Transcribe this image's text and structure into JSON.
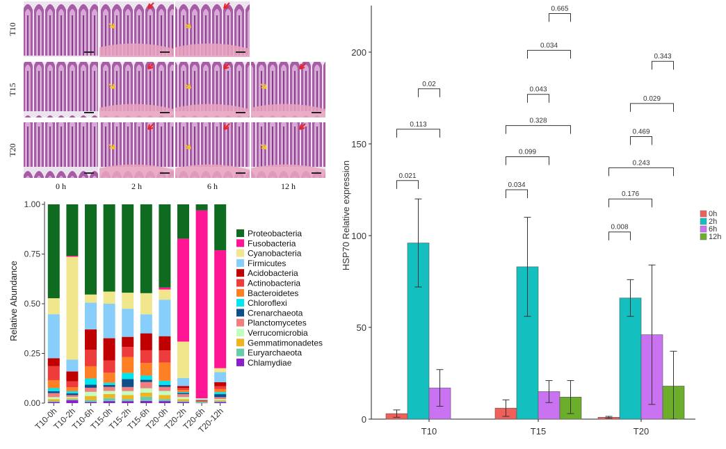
{
  "histology": {
    "rows": [
      "T10",
      "T15",
      "T20"
    ],
    "columns": [
      "0 h",
      "2 h",
      "6 h",
      "12 h"
    ],
    "present": [
      [
        true,
        true,
        true,
        false
      ],
      [
        true,
        true,
        true,
        true
      ],
      [
        true,
        true,
        true,
        true
      ]
    ],
    "colors": {
      "tissue": "#a85ca6",
      "lumen": "#ece4ef",
      "submucosa": "#e9a3bf",
      "arrow_red": "#e8242a",
      "arrow_yellow": "#f0c22a"
    }
  },
  "chart_data": [
    {
      "type": "stacked-bar",
      "ylabel": "Relative Abundance",
      "ylim": [
        0,
        1
      ],
      "yticks": [
        "0.00",
        "0.25",
        "0.50",
        "0.75",
        "1.00"
      ],
      "categories": [
        "T10-0h",
        "T10-2h",
        "T10-6h",
        "T15-0h",
        "T15-2h",
        "T15-6h",
        "T20-0h",
        "T20-2h",
        "T20-6h",
        "T20-12h"
      ],
      "legend_position": "right",
      "series": [
        {
          "name": "Proteobacteria",
          "color": "#0e6b1f",
          "values": [
            0.47,
            0.26,
            0.44,
            0.43,
            0.44,
            0.42,
            0.41,
            0.17,
            0.03,
            0.23
          ]
        },
        {
          "name": "Fusobacteria",
          "color": "#ff1493",
          "values": [
            0.0,
            0.005,
            0.0,
            0.0,
            0.0,
            0.0,
            0.01,
            0.51,
            0.93,
            0.59
          ]
        },
        {
          "name": "Cyanobacteria",
          "color": "#f0e68c",
          "values": [
            0.08,
            0.52,
            0.04,
            0.06,
            0.08,
            0.1,
            0.05,
            0.18,
            0.005,
            0.02
          ]
        },
        {
          "name": "Firmicutes",
          "color": "#87cefa",
          "values": [
            0.22,
            0.06,
            0.13,
            0.17,
            0.14,
            0.09,
            0.18,
            0.04,
            0.005,
            0.05
          ]
        },
        {
          "name": "Acidobacteria",
          "color": "#c00000",
          "values": [
            0.04,
            0.05,
            0.1,
            0.11,
            0.05,
            0.08,
            0.07,
            0.01,
            0.003,
            0.02
          ]
        },
        {
          "name": "Actinobacteria",
          "color": "#ee3b3b",
          "values": [
            0.07,
            0.03,
            0.08,
            0.06,
            0.05,
            0.06,
            0.06,
            0.01,
            0.002,
            0.015
          ]
        },
        {
          "name": "Bacteroidetes",
          "color": "#ff7f24",
          "values": [
            0.04,
            0.02,
            0.06,
            0.05,
            0.08,
            0.06,
            0.09,
            0.01,
            0.002,
            0.015
          ]
        },
        {
          "name": "Chloroflexi",
          "color": "#00e5ee",
          "values": [
            0.015,
            0.01,
            0.03,
            0.01,
            0.03,
            0.02,
            0.02,
            0.005,
            0.001,
            0.01
          ]
        },
        {
          "name": "Crenarchaeota",
          "color": "#104e8b",
          "values": [
            0.01,
            0.01,
            0.015,
            0.01,
            0.04,
            0.01,
            0.01,
            0.005,
            0.001,
            0.015
          ]
        },
        {
          "name": "Planctomycetes",
          "color": "#f08080",
          "values": [
            0.02,
            0.01,
            0.02,
            0.02,
            0.02,
            0.03,
            0.02,
            0.015,
            0.001,
            0.01
          ]
        },
        {
          "name": "Verrucomicrobia",
          "color": "#c1ffc1",
          "values": [
            0.01,
            0.005,
            0.02,
            0.015,
            0.02,
            0.02,
            0.02,
            0.01,
            0.001,
            0.005
          ]
        },
        {
          "name": "Gemmatimonadetes",
          "color": "#eeb422",
          "values": [
            0.01,
            0.005,
            0.02,
            0.02,
            0.02,
            0.02,
            0.02,
            0.01,
            0.001,
            0.005
          ]
        },
        {
          "name": "Euryarchaeota",
          "color": "#66cdaa",
          "values": [
            0.005,
            0.005,
            0.01,
            0.015,
            0.01,
            0.02,
            0.01,
            0.005,
            0.001,
            0.005
          ]
        },
        {
          "name": "Chlamydiae",
          "color": "#8b1fc9",
          "values": [
            0.005,
            0.015,
            0.005,
            0.01,
            0.01,
            0.01,
            0.01,
            0.005,
            0.001,
            0.005
          ]
        }
      ]
    },
    {
      "type": "bar",
      "ylabel": "HSP70 Relative expression",
      "ylim": [
        0,
        225
      ],
      "yticks": [
        0,
        50,
        100,
        150,
        200
      ],
      "categories": [
        "T10",
        "T15",
        "T20"
      ],
      "legend_position": "right",
      "series": [
        {
          "name": "0h",
          "color": "#f0605a",
          "values": [
            3,
            6,
            1
          ],
          "errors": [
            2,
            4.5,
            0.5
          ]
        },
        {
          "name": "2h",
          "color": "#14bfbf",
          "values": [
            96,
            83,
            66
          ],
          "errors": [
            24,
            27,
            10
          ]
        },
        {
          "name": "6h",
          "color": "#c973f2",
          "values": [
            17,
            15,
            46
          ],
          "errors": [
            10,
            6,
            38
          ]
        },
        {
          "name": "12h",
          "color": "#6cad2c",
          "values": [
            null,
            12,
            18
          ],
          "errors": [
            0,
            9,
            19
          ]
        }
      ],
      "significance": [
        {
          "group": "T10",
          "from": "0h",
          "to": "2h",
          "p": "0.021",
          "level": 130
        },
        {
          "group": "T10",
          "from": "0h",
          "to": "6h",
          "p": "0.113",
          "level": 158
        },
        {
          "group": "T10",
          "from": "2h",
          "to": "6h",
          "p": "0.02",
          "level": 180
        },
        {
          "group": "T15",
          "from": "0h",
          "to": "2h",
          "p": "0.034",
          "level": 125
        },
        {
          "group": "T15",
          "from": "0h",
          "to": "6h",
          "p": "0.099",
          "level": 143
        },
        {
          "group": "T15",
          "from": "0h",
          "to": "12h",
          "p": "0.328",
          "level": 160
        },
        {
          "group": "T15",
          "from": "2h",
          "to": "6h",
          "p": "0.043",
          "level": 177
        },
        {
          "group": "T15",
          "from": "2h",
          "to": "12h",
          "p": "0.034",
          "level": 201
        },
        {
          "group": "T15",
          "from": "6h",
          "to": "12h",
          "p": "0.665",
          "level": 221
        },
        {
          "group": "T20",
          "from": "0h",
          "to": "2h",
          "p": "0.008",
          "level": 102
        },
        {
          "group": "T20",
          "from": "0h",
          "to": "6h",
          "p": "0.176",
          "level": 120
        },
        {
          "group": "T20",
          "from": "0h",
          "to": "12h",
          "p": "0.243",
          "level": 137
        },
        {
          "group": "T20",
          "from": "2h",
          "to": "6h",
          "p": "0.469",
          "level": 154
        },
        {
          "group": "T20",
          "from": "2h",
          "to": "12h",
          "p": "0.029",
          "level": 172
        },
        {
          "group": "T20",
          "from": "6h",
          "to": "12h",
          "p": "0.343",
          "level": 195
        }
      ]
    }
  ]
}
